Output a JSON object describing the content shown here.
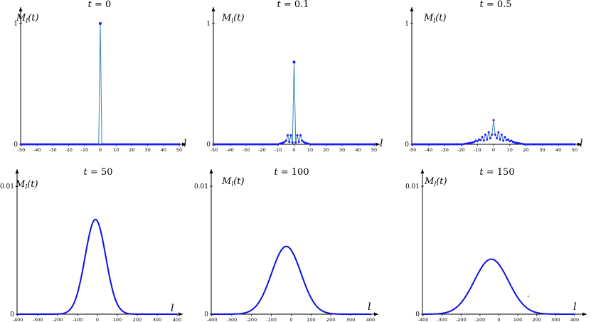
{
  "chart_data": [
    {
      "type": "scatter",
      "title": "t = 0",
      "ylabel": "M_l(t)",
      "xlabel": "l",
      "xlim": [
        -50,
        50
      ],
      "ylim": [
        0,
        1
      ],
      "xticks": [
        -50,
        -40,
        -30,
        -20,
        -10,
        0,
        10,
        20,
        30,
        40,
        50
      ],
      "xtick_labels": [
        "-50",
        "-40",
        "-30",
        "-20",
        "-10",
        "0",
        "10",
        "20",
        "30",
        "40",
        "50"
      ],
      "yticks": [
        0,
        1
      ],
      "ytick_labels": [
        "0",
        "1"
      ],
      "style": "stem",
      "series": [
        {
          "x": [
            -50,
            -49,
            -48,
            -47,
            -46,
            -45,
            -44,
            -43,
            -42,
            -41,
            -40,
            -39,
            -38,
            -37,
            -36,
            -35,
            -34,
            -33,
            -32,
            -31,
            -30,
            -29,
            -28,
            -27,
            -26,
            -25,
            -24,
            -23,
            -22,
            -21,
            -20,
            -19,
            -18,
            -17,
            -16,
            -15,
            -14,
            -13,
            -12,
            -11,
            -10,
            -9,
            -8,
            -7,
            -6,
            -5,
            -4,
            -3,
            -2,
            -1,
            0,
            1,
            2,
            3,
            4,
            5,
            6,
            7,
            8,
            9,
            10,
            11,
            12,
            13,
            14,
            15,
            16,
            17,
            18,
            19,
            20,
            21,
            22,
            23,
            24,
            25,
            26,
            27,
            28,
            29,
            30,
            31,
            32,
            33,
            34,
            35,
            36,
            37,
            38,
            39,
            40,
            41,
            42,
            43,
            44,
            45,
            46,
            47,
            48,
            49,
            50
          ],
          "y": [
            0,
            0,
            0,
            0,
            0,
            0,
            0,
            0,
            0,
            0,
            0,
            0,
            0,
            0,
            0,
            0,
            0,
            0,
            0,
            0,
            0,
            0,
            0,
            0,
            0,
            0,
            0,
            0,
            0,
            0,
            0,
            0,
            0,
            0,
            0,
            0,
            0,
            0,
            0,
            0,
            0,
            0,
            0,
            0,
            0,
            0,
            0,
            0,
            0,
            0,
            1,
            0,
            0,
            0,
            0,
            0,
            0,
            0,
            0,
            0,
            0,
            0,
            0,
            0,
            0,
            0,
            0,
            0,
            0,
            0,
            0,
            0,
            0,
            0,
            0,
            0,
            0,
            0,
            0,
            0,
            0,
            0,
            0,
            0,
            0,
            0,
            0,
            0,
            0,
            0,
            0,
            0,
            0,
            0,
            0,
            0,
            0,
            0,
            0,
            0,
            0
          ]
        }
      ]
    },
    {
      "type": "scatter",
      "title": "t = 0.1",
      "ylabel": "M_l(t)",
      "xlabel": "l",
      "xlim": [
        -50,
        50
      ],
      "ylim": [
        0,
        1
      ],
      "xticks": [
        -50,
        -40,
        -30,
        -20,
        -10,
        0,
        10,
        20,
        30,
        40,
        50
      ],
      "xtick_labels": [
        "-50",
        "-40",
        "-30",
        "-20",
        "-10",
        "0",
        "10",
        "20",
        "30",
        "40",
        "50"
      ],
      "yticks": [
        0,
        1
      ],
      "ytick_labels": [
        "0",
        "1"
      ],
      "style": "stem",
      "series": [
        {
          "x": [
            -50,
            -49,
            -48,
            -47,
            -46,
            -45,
            -44,
            -43,
            -42,
            -41,
            -40,
            -39,
            -38,
            -37,
            -36,
            -35,
            -34,
            -33,
            -32,
            -31,
            -30,
            -29,
            -28,
            -27,
            -26,
            -25,
            -24,
            -23,
            -22,
            -21,
            -20,
            -19,
            -18,
            -17,
            -16,
            -15,
            -14,
            -13,
            -12,
            -11,
            -10,
            -9,
            -8,
            -7,
            -6,
            -5,
            -4,
            -3,
            -2,
            -1,
            0,
            1,
            2,
            3,
            4,
            5,
            6,
            7,
            8,
            9,
            10,
            11,
            12,
            13,
            14,
            15,
            16,
            17,
            18,
            19,
            20,
            21,
            22,
            23,
            24,
            25,
            26,
            27,
            28,
            29,
            30,
            31,
            32,
            33,
            34,
            35,
            36,
            37,
            38,
            39,
            40,
            41,
            42,
            43,
            44,
            45,
            46,
            47,
            48,
            49,
            50
          ],
          "y": [
            0,
            0,
            0,
            0,
            0,
            0,
            0,
            0,
            0,
            0,
            0,
            0,
            0,
            0,
            0,
            0,
            0,
            0,
            0,
            0,
            0,
            0,
            0,
            0,
            0,
            0,
            0,
            0,
            0,
            0,
            0,
            0,
            0,
            0,
            0,
            0,
            0,
            0,
            0,
            0,
            0,
            0.005,
            0.008,
            0.012,
            0.02,
            0.03,
            0.075,
            0.02,
            0.075,
            0.015,
            0.68,
            0.015,
            0.075,
            0.02,
            0.075,
            0.03,
            0.02,
            0.012,
            0.008,
            0.005,
            0,
            0,
            0,
            0,
            0,
            0,
            0,
            0,
            0,
            0,
            0,
            0,
            0,
            0,
            0,
            0,
            0,
            0,
            0,
            0,
            0,
            0,
            0,
            0,
            0,
            0,
            0,
            0,
            0,
            0,
            0,
            0,
            0,
            0,
            0,
            0,
            0,
            0,
            0,
            0,
            0
          ]
        }
      ]
    },
    {
      "type": "scatter",
      "title": "t = 0.5",
      "ylabel": "M_l(t)",
      "xlabel": "l",
      "xlim": [
        -50,
        50
      ],
      "ylim": [
        0,
        1
      ],
      "xticks": [
        -50,
        -40,
        -30,
        -20,
        -10,
        0,
        10,
        20,
        30,
        40,
        50
      ],
      "xtick_labels": [
        "-50",
        "-40",
        "-30",
        "-20",
        "-10",
        "0",
        "10",
        "20",
        "30",
        "40",
        "50"
      ],
      "yticks": [
        0,
        1
      ],
      "ytick_labels": [
        "0",
        "1"
      ],
      "style": "stem",
      "series": [
        {
          "x": [
            -50,
            -49,
            -48,
            -47,
            -46,
            -45,
            -44,
            -43,
            -42,
            -41,
            -40,
            -39,
            -38,
            -37,
            -36,
            -35,
            -34,
            -33,
            -32,
            -31,
            -30,
            -29,
            -28,
            -27,
            -26,
            -25,
            -24,
            -23,
            -22,
            -21,
            -20,
            -19,
            -18,
            -17,
            -16,
            -15,
            -14,
            -13,
            -12,
            -11,
            -10,
            -9,
            -8,
            -7,
            -6,
            -5,
            -4,
            -3,
            -2,
            -1,
            0,
            1,
            2,
            3,
            4,
            5,
            6,
            7,
            8,
            9,
            10,
            11,
            12,
            13,
            14,
            15,
            16,
            17,
            18,
            19,
            20,
            21,
            22,
            23,
            24,
            25,
            26,
            27,
            28,
            29,
            30,
            31,
            32,
            33,
            34,
            35,
            36,
            37,
            38,
            39,
            40,
            41,
            42,
            43,
            44,
            45,
            46,
            47,
            48,
            49,
            50
          ],
          "y": [
            0,
            0,
            0,
            0,
            0,
            0,
            0,
            0,
            0,
            0,
            0,
            0,
            0,
            0,
            0,
            0,
            0,
            0,
            0,
            0,
            0,
            0,
            0,
            0,
            0,
            0,
            0,
            0,
            0,
            0,
            0,
            0,
            0.003,
            0.005,
            0.007,
            0.01,
            0.012,
            0.015,
            0.02,
            0.03,
            0.025,
            0.04,
            0.035,
            0.06,
            0.03,
            0.08,
            0.04,
            0.1,
            0.05,
            0.08,
            0.2,
            0.08,
            0.05,
            0.1,
            0.04,
            0.08,
            0.03,
            0.06,
            0.035,
            0.04,
            0.025,
            0.03,
            0.02,
            0.015,
            0.012,
            0.01,
            0.007,
            0.005,
            0.003,
            0,
            0,
            0,
            0,
            0,
            0,
            0,
            0,
            0,
            0,
            0,
            0,
            0,
            0,
            0,
            0,
            0,
            0,
            0,
            0,
            0,
            0,
            0,
            0,
            0,
            0,
            0,
            0,
            0,
            0,
            0,
            0
          ]
        }
      ]
    },
    {
      "type": "line",
      "title": "t = 50",
      "ylabel": "M_l(t)",
      "xlabel": "l",
      "xlim": [
        -400,
        400
      ],
      "ylim": [
        0,
        0.01
      ],
      "xticks": [
        -400,
        -300,
        -200,
        -100,
        0,
        100,
        200,
        300,
        400
      ],
      "xtick_labels": [
        "-400",
        "-300",
        "-200",
        "-100",
        "0",
        "100",
        "200",
        "300",
        "400"
      ],
      "yticks": [
        0,
        0.01
      ],
      "ytick_labels": [
        "0",
        "0.01"
      ],
      "gaussian": {
        "peak_x": -10,
        "peak_y": 0.0074,
        "sigma": 52
      }
    },
    {
      "type": "line",
      "title": "t = 100",
      "ylabel": "M_l(t)",
      "xlabel": "l",
      "xlim": [
        -400,
        400
      ],
      "ylim": [
        0,
        0.01
      ],
      "xticks": [
        -400,
        -300,
        -200,
        -100,
        0,
        100,
        200,
        300,
        400
      ],
      "xtick_labels": [
        "-400",
        "-300",
        "-200",
        "-100",
        "0",
        "100",
        "200",
        "300",
        "400"
      ],
      "yticks": [
        0,
        0.01
      ],
      "ytick_labels": [
        "0",
        "0.01"
      ],
      "gaussian": {
        "peak_x": -25,
        "peak_y": 0.0053,
        "sigma": 74
      }
    },
    {
      "type": "line",
      "title": "t = 150",
      "ylabel": "M_l(t)",
      "xlabel": "l",
      "xlim": [
        -400,
        400
      ],
      "ylim": [
        0,
        0.01
      ],
      "xticks": [
        -400,
        -300,
        -200,
        -100,
        0,
        100,
        200,
        300,
        400
      ],
      "xtick_labels": [
        "-400",
        "-300",
        "-200",
        "-100",
        "0",
        "100",
        "200",
        "300",
        "400"
      ],
      "yticks": [
        0,
        0.01
      ],
      "ytick_labels": [
        "0",
        "0.01"
      ],
      "gaussian": {
        "peak_x": -40,
        "peak_y": 0.0043,
        "sigma": 90
      },
      "stray_point": {
        "x": 155,
        "y": 0.0014
      }
    }
  ]
}
